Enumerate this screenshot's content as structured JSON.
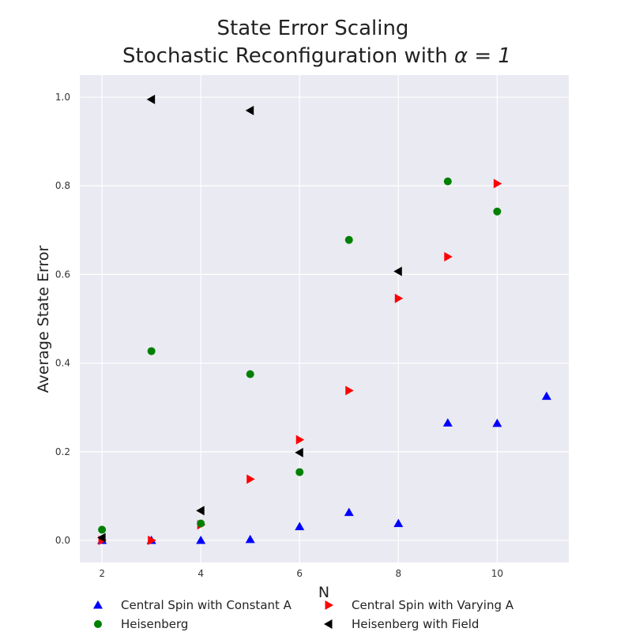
{
  "chart_data": {
    "type": "scatter",
    "title_line1": "State Error Scaling",
    "title_line2_prefix": "Stochastic Reconfiguration with ",
    "title_line2_math": "α = 1",
    "xlabel": "N",
    "ylabel": "Average State Error",
    "xlim": [
      1.55,
      11.45
    ],
    "ylim": [
      -0.05,
      1.05
    ],
    "xticks": [
      2,
      4,
      6,
      8,
      10
    ],
    "yticks": [
      0.0,
      0.2,
      0.4,
      0.6,
      0.8,
      1.0
    ],
    "grid": true,
    "legend_placement": "bottom",
    "series": [
      {
        "name": "Central Spin with Constant A",
        "marker": "triangle-up",
        "color": "#0000ff",
        "x": [
          2,
          3,
          4,
          5,
          6,
          7,
          8,
          9,
          10,
          11
        ],
        "y": [
          0.0,
          0.0,
          0.0,
          0.002,
          0.031,
          0.063,
          0.038,
          0.265,
          0.264,
          0.325
        ]
      },
      {
        "name": "Central Spin with Varying A",
        "marker": "triangle-right",
        "color": "#ff0000",
        "x": [
          2,
          3,
          4,
          5,
          6,
          7,
          8,
          9,
          10
        ],
        "y": [
          0.0,
          0.0,
          0.035,
          0.138,
          0.227,
          0.338,
          0.546,
          0.64,
          0.805
        ]
      },
      {
        "name": "Heisenberg",
        "marker": "circle",
        "color": "#008000",
        "x": [
          2,
          3,
          4,
          5,
          6,
          7,
          9,
          10
        ],
        "y": [
          0.024,
          0.427,
          0.038,
          0.375,
          0.154,
          0.678,
          0.81,
          0.742
        ]
      },
      {
        "name": "Heisenberg with Field",
        "marker": "triangle-left",
        "color": "#000000",
        "x": [
          2,
          3,
          4,
          5,
          6,
          8
        ],
        "y": [
          0.006,
          0.995,
          0.067,
          0.97,
          0.198,
          0.607
        ]
      }
    ]
  }
}
